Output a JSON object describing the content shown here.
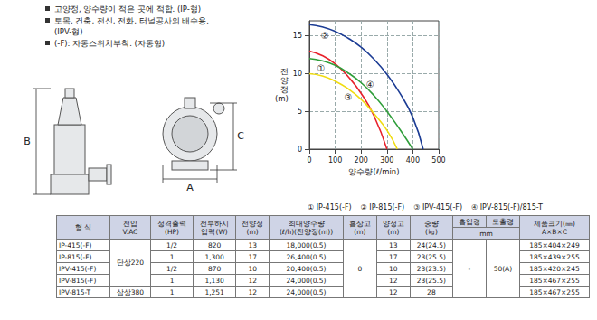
{
  "bullets": [
    "고양정, 양수량이 적은 곳에 적합. (IP-형)",
    "토목, 건축, 전신, 전화, 터널공사의 배수용.\n(IPV-형)",
    "(-F): 자동스위치부착. (자동형)"
  ],
  "drawing": {
    "labels": [
      "A",
      "B",
      "C"
    ]
  },
  "chart_data": {
    "type": "line",
    "x_label": "양수량(ℓ/min)",
    "y_label": "전양정(m)",
    "xlim": [
      0,
      500
    ],
    "xticks": [
      0,
      100,
      200,
      300,
      400,
      500
    ],
    "ylim": [
      0,
      17
    ],
    "yticks": [
      0,
      5,
      10,
      15
    ],
    "grid": true,
    "legend": "bottom",
    "series": [
      {
        "name": "① IP-415(-F)",
        "color": "#e8212b",
        "x": [
          0,
          50,
          100,
          150,
          200,
          250,
          300
        ],
        "values": [
          13,
          12.4,
          11.3,
          9.6,
          7.4,
          4.4,
          0
        ]
      },
      {
        "name": "② IP-815(-F)",
        "color": "#1c3c94",
        "x": [
          0,
          50,
          100,
          150,
          200,
          250,
          300,
          350,
          400,
          440
        ],
        "values": [
          16.5,
          16.2,
          15.6,
          14.7,
          13.5,
          11.9,
          9.9,
          7.4,
          4.2,
          0
        ]
      },
      {
        "name": "③ IPV-415(-F)",
        "color": "#f0dc10",
        "x": [
          0,
          50,
          100,
          150,
          200,
          250,
          300,
          340
        ],
        "values": [
          10,
          9.7,
          9,
          8,
          6.6,
          4.7,
          2.5,
          0
        ]
      },
      {
        "name": "④ IPV-815(-F)/815-T",
        "color": "#2f9e3a",
        "x": [
          0,
          50,
          100,
          150,
          200,
          250,
          300,
          350,
          400
        ],
        "values": [
          12,
          11.7,
          11.1,
          10.1,
          8.8,
          7.1,
          5,
          2.6,
          0
        ]
      }
    ],
    "annotations": [
      {
        "text": "②",
        "x": 60,
        "y": 15
      },
      {
        "text": "①",
        "x": 45,
        "y": 10.7
      },
      {
        "text": "③",
        "x": 150,
        "y": 6.9
      },
      {
        "text": "④",
        "x": 235,
        "y": 8.6
      }
    ]
  },
  "table": {
    "header": [
      [
        {
          "text": "형 식",
          "rowspan": 2
        },
        {
          "text": "전압\nV.AC",
          "rowspan": 2
        },
        {
          "text": "정격출력\n(HP)",
          "rowspan": 2
        },
        {
          "text": "전부하시\n입력(W)",
          "rowspan": 2
        },
        {
          "text": "전양정\n(m)",
          "rowspan": 2
        },
        {
          "text": "최대양수량\n(ℓ/h)(전양정(m))",
          "rowspan": 2
        },
        {
          "text": "흡상고\n(m)",
          "rowspan": 2
        },
        {
          "text": "양정고\n(m)",
          "rowspan": 2
        },
        {
          "text": "중량\n(㎏)",
          "rowspan": 2
        },
        {
          "text": "흡입경"
        },
        {
          "text": "토출경"
        },
        {
          "text": "제품크기(㎜)\nA×B×C",
          "rowspan": 2
        }
      ],
      [
        {
          "text": "mm",
          "colspan": 2
        }
      ]
    ],
    "rows": [
      [
        "IP-415(-F)",
        {
          "text": "단상220",
          "rowspan": 4
        },
        "1/2",
        "820",
        "13",
        "18,000(0.5)",
        {
          "text": "0",
          "rowspan": 5
        },
        "13",
        "24(24.5)",
        {
          "text": "-",
          "rowspan": 5
        },
        {
          "text": "50(A)",
          "rowspan": 5
        },
        "185×404×249"
      ],
      [
        "IP-815(-F)",
        "1",
        "1,300",
        "17",
        "26,400(0.5)",
        "17",
        "23(25.5)",
        "185×439×255"
      ],
      [
        "IPV-415(-F)",
        "1/2",
        "870",
        "10",
        "20,400(0.5)",
        "10",
        "23(23.5)",
        "185×420×245"
      ],
      [
        "IPV-815(-F)",
        "1",
        "1,130",
        "12",
        "24,000(0.5)",
        "12",
        "23(25.5)",
        "185×467×255"
      ],
      [
        "IPV-815-T",
        "삼상380",
        "1",
        "1,251",
        "12",
        "24,000(0.5)",
        "12",
        "28",
        "185×467×255"
      ]
    ]
  }
}
